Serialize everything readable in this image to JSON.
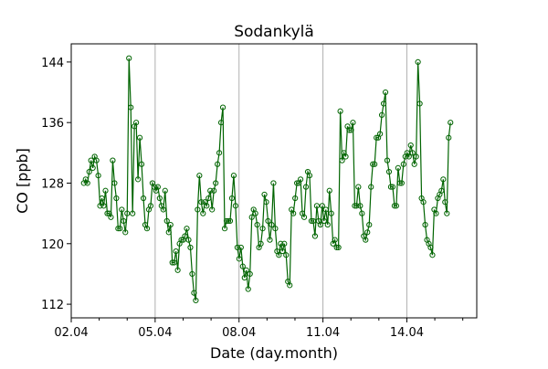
{
  "chart_data": {
    "type": "line",
    "title": "Sodankylä",
    "xlabel": "Date (day.month)",
    "ylabel": "CO [ppb]",
    "xticks": [
      {
        "label": "02.04",
        "day": 0
      },
      {
        "label": "05.04",
        "day": 3
      },
      {
        "label": "08.04",
        "day": 6
      },
      {
        "label": "11.04",
        "day": 9
      },
      {
        "label": "14.04",
        "day": 12
      }
    ],
    "yticks": [
      112,
      120,
      128,
      136,
      144
    ],
    "xlim_days_from_0204": [
      0,
      14.5
    ],
    "ylim": [
      110.2,
      146.4
    ],
    "grid": "vertical lines at major x ticks",
    "series": [
      {
        "name": "CO",
        "color": "#006400",
        "marker": "open circle",
        "start_day": 0.45,
        "interval_hours": 1.55,
        "values": [
          128,
          128.5,
          128,
          129.5,
          131,
          130,
          131.5,
          131,
          129,
          125,
          126,
          125,
          127,
          124,
          124,
          123.5,
          131,
          128,
          126,
          122,
          122,
          124.5,
          123,
          121.5,
          124,
          144.5,
          138,
          124,
          135.5,
          136,
          128.5,
          134,
          130.5,
          126,
          122.5,
          122,
          124.5,
          125,
          128,
          127.5,
          127,
          127.5,
          126,
          125,
          124.5,
          127,
          123,
          121.5,
          122.5,
          117.5,
          117.5,
          119,
          116.5,
          120,
          120.5,
          120.5,
          121,
          122,
          120.5,
          119.5,
          116,
          113.5,
          112.5,
          124.5,
          129,
          125.5,
          124,
          125.5,
          125,
          126,
          127,
          124.5,
          127,
          128,
          130.5,
          132,
          136,
          138,
          122,
          123,
          123,
          123,
          126,
          129,
          125,
          119.5,
          118,
          119.5,
          117,
          115.5,
          116.5,
          114,
          116,
          123.5,
          124.5,
          124,
          122.5,
          119.5,
          120,
          122,
          126.5,
          125.5,
          123,
          120.5,
          122.5,
          128,
          122,
          119,
          118.5,
          120,
          119,
          120,
          118.5,
          115,
          114.5,
          124.5,
          124,
          126,
          128,
          128,
          128.5,
          124,
          123.5,
          127.5,
          129.5,
          129,
          123,
          123,
          121,
          125,
          123,
          122.5,
          125,
          123,
          124.5,
          122.5,
          127,
          124,
          120,
          120.5,
          119.5,
          119.5,
          137.5,
          131,
          132,
          131.5,
          135.5,
          135,
          135,
          136,
          125,
          125,
          127.5,
          125,
          124,
          121,
          120.5,
          121.5,
          122.5,
          127.5,
          130.5,
          130.5,
          134,
          134,
          134.5,
          137,
          138.5,
          140,
          131,
          129.5,
          127.5,
          127.5,
          125,
          125,
          130,
          128,
          128,
          130.5,
          131.5,
          132,
          131.5,
          133,
          132,
          130.5,
          131.5,
          144,
          138.5,
          126,
          125.5,
          122.5,
          120.5,
          120,
          119.5,
          118.5,
          124.5,
          124,
          126,
          126.5,
          127,
          128.5,
          125.5,
          124,
          134,
          136
        ]
      }
    ]
  }
}
